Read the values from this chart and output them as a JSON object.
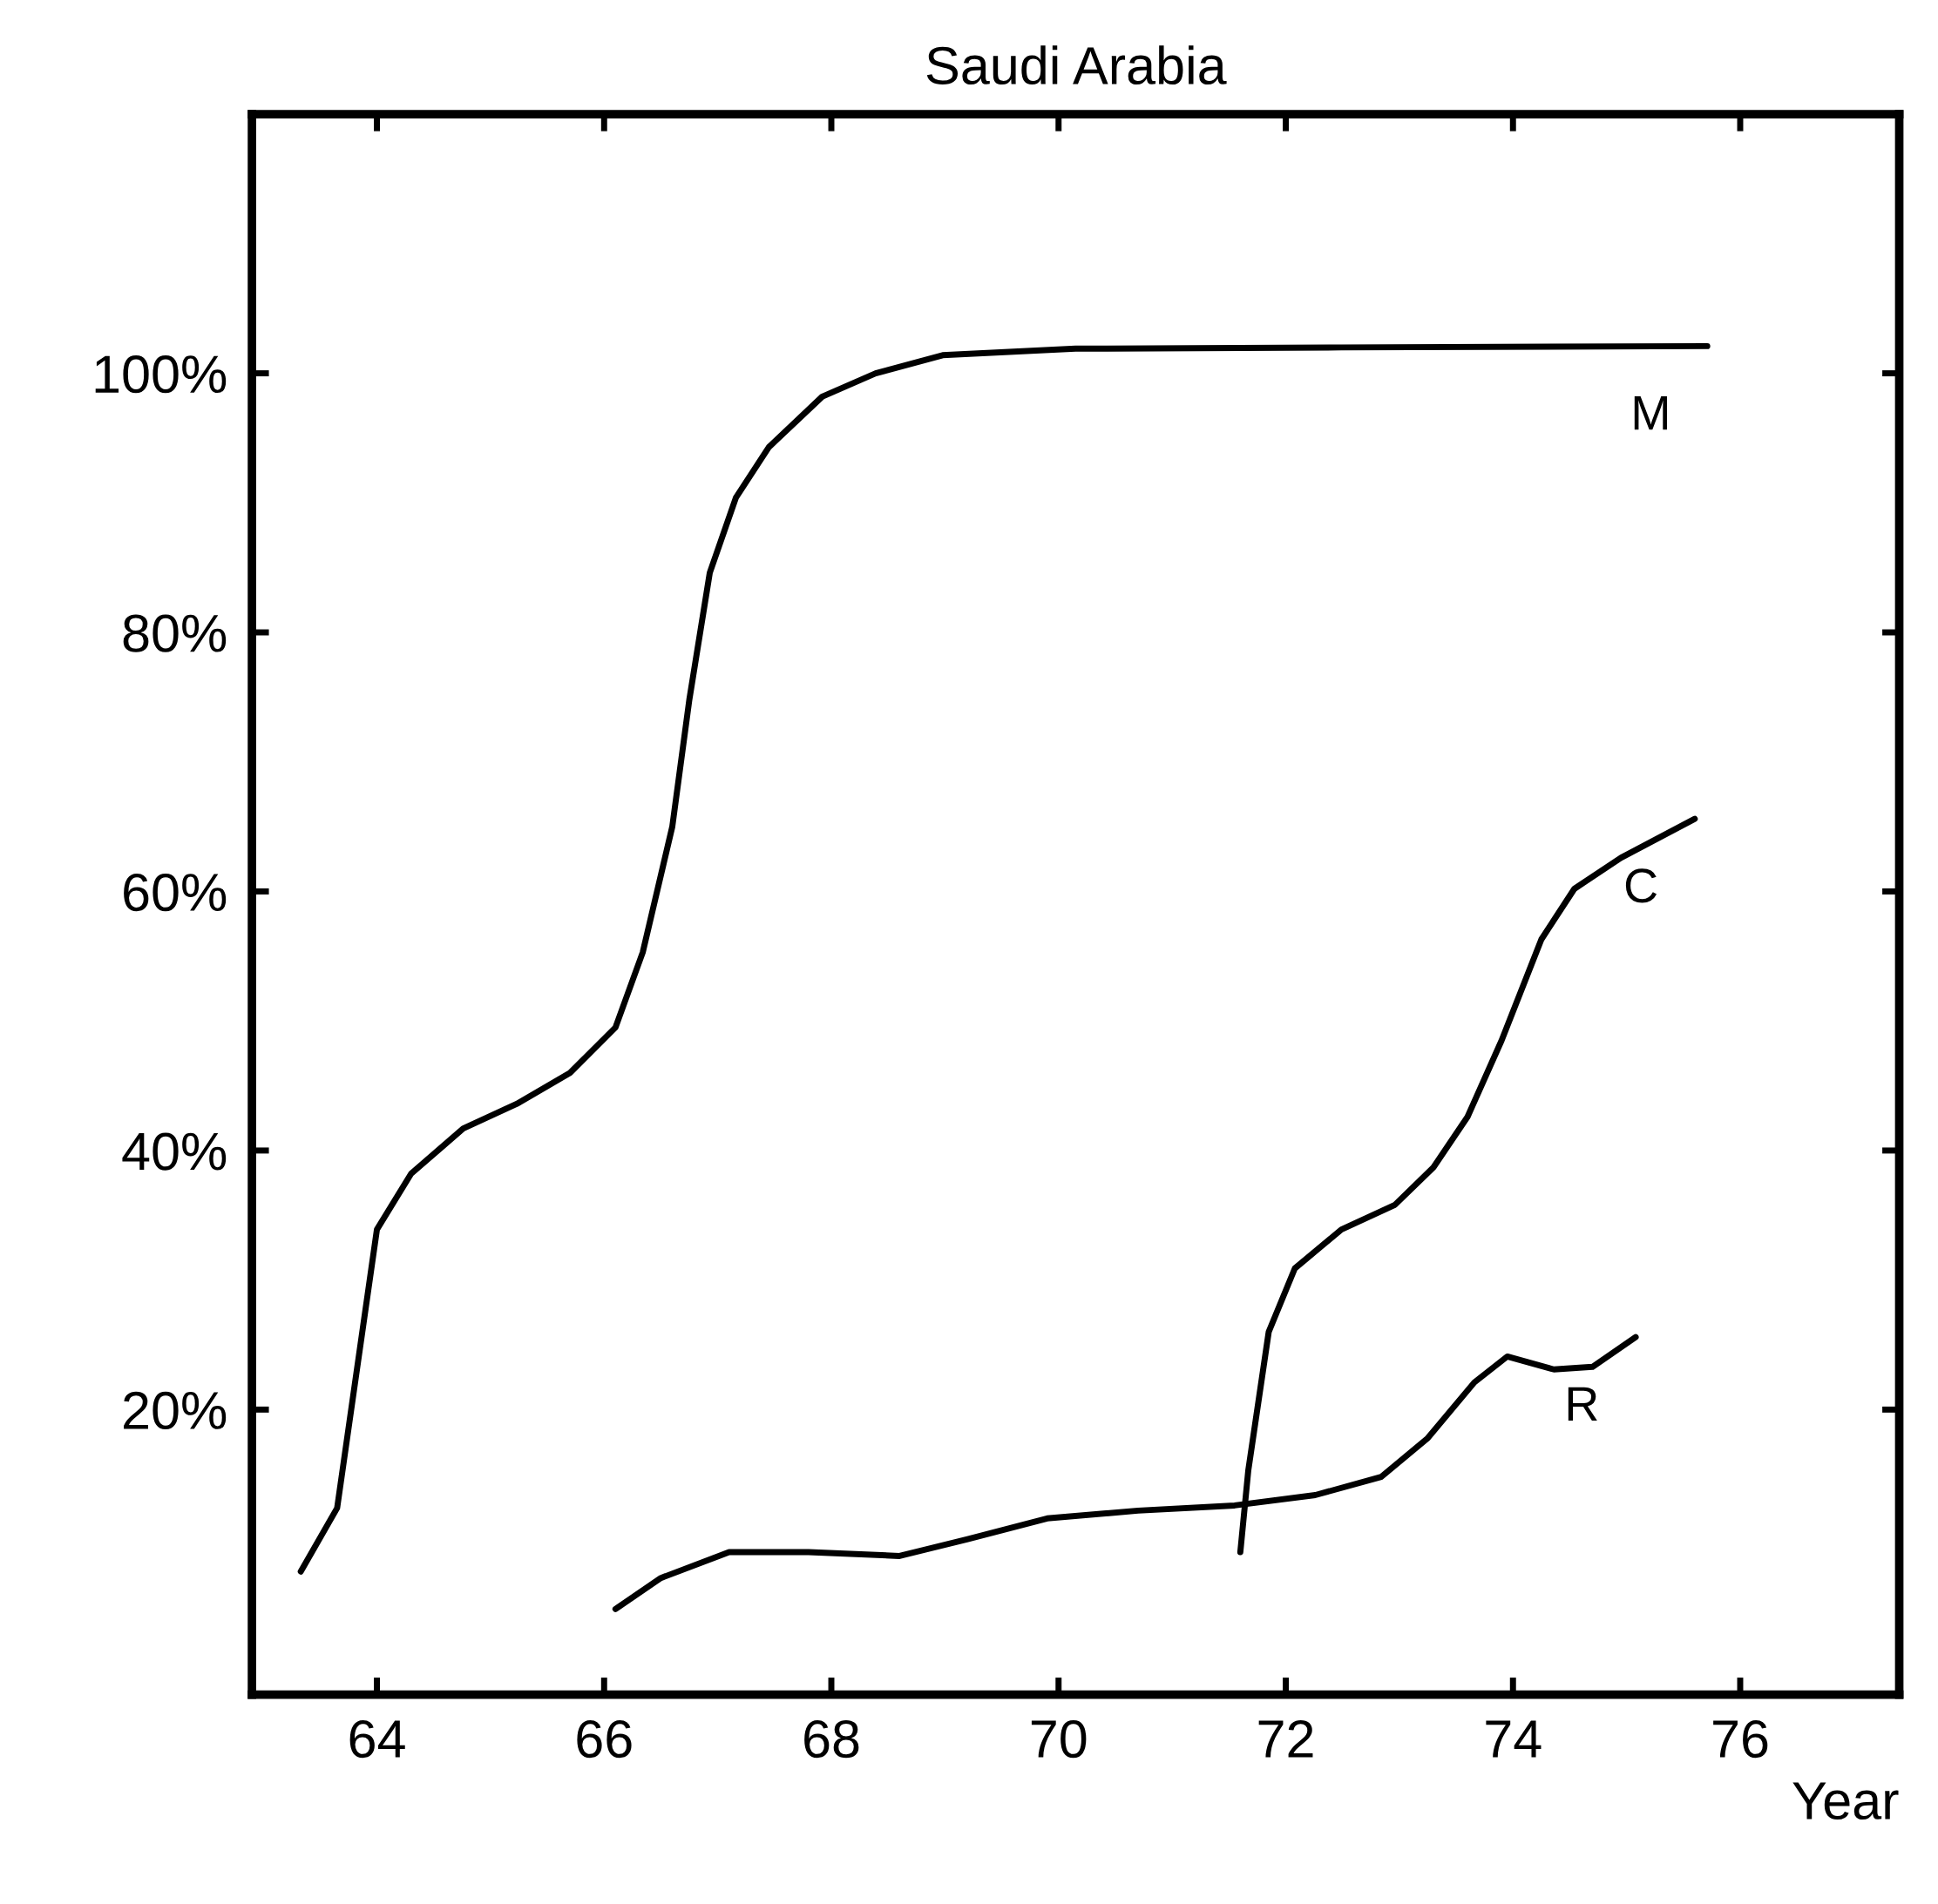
{
  "chart_data": {
    "type": "line",
    "title": "Saudi Arabia",
    "xlabel": "Year",
    "xlim": [
      62.9,
      77.4
    ],
    "ylim": [
      -2,
      120
    ],
    "xticks": [
      64,
      66,
      68,
      70,
      72,
      74,
      76
    ],
    "yticks": [
      {
        "value": 20,
        "label": "20%"
      },
      {
        "value": 40,
        "label": "40%"
      },
      {
        "value": 60,
        "label": "60%"
      },
      {
        "value": 80,
        "label": "80%"
      },
      {
        "value": 100,
        "label": "100%"
      }
    ],
    "grid": false,
    "legend": false,
    "marker": "none",
    "line_style": "solid",
    "series": [
      {
        "name": "M",
        "color": "#000000",
        "x": [
          63.33,
          63.65,
          64.0,
          64.3,
          64.76,
          65.23,
          65.7,
          66.1,
          66.34,
          66.6,
          66.75,
          66.93,
          67.16,
          67.45,
          67.92,
          68.39,
          68.98,
          70.15,
          72.49,
          75.71
        ],
        "values": [
          7.5,
          12.4,
          33.9,
          38.2,
          41.7,
          43.6,
          46,
          49.5,
          55.3,
          65,
          74.8,
          84.6,
          90.4,
          94.3,
          98.2,
          100,
          101.4,
          101.9,
          102,
          102.1
        ]
      },
      {
        "name": "C",
        "color": "#000000",
        "x": [
          71.6,
          71.67,
          71.85,
          72.08,
          72.49,
          72.96,
          73.3,
          73.6,
          73.9,
          74.25,
          74.54,
          74.95,
          75.6
        ],
        "values": [
          9,
          15.3,
          26,
          30.9,
          33.9,
          35.8,
          38.7,
          42.6,
          48.5,
          56.3,
          60.2,
          62.6,
          65.6
        ]
      },
      {
        "name": "R",
        "color": "#000000",
        "x": [
          66.1,
          66.5,
          67.1,
          67.8,
          68.6,
          69.2,
          69.9,
          70.7,
          71.55,
          72.26,
          72.84,
          73.25,
          73.66,
          73.95,
          74.36,
          74.7,
          75.08
        ],
        "values": [
          4.6,
          7,
          9,
          9,
          8.7,
          10,
          11.6,
          12.2,
          12.6,
          13.4,
          14.8,
          17.8,
          22.1,
          24.1,
          23.1,
          23.3,
          25.6
        ]
      }
    ]
  }
}
